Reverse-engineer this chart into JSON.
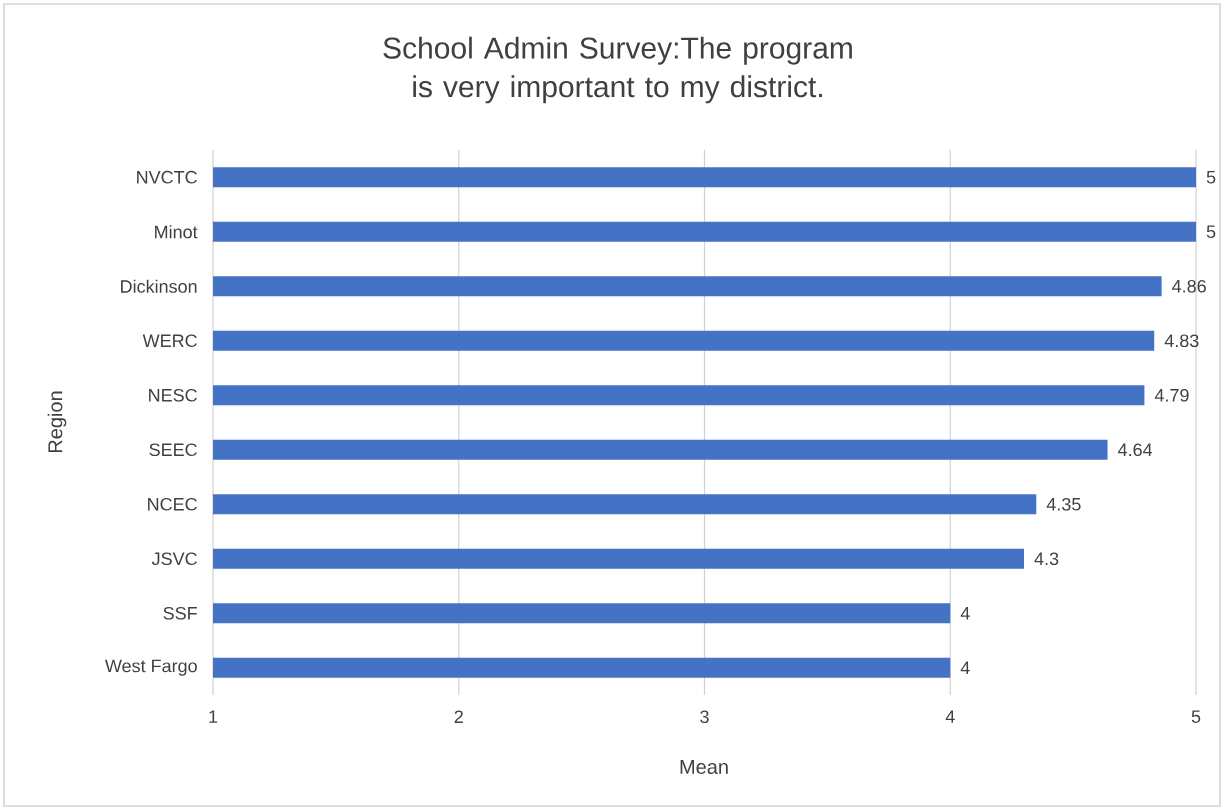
{
  "chart_data": {
    "type": "bar",
    "orientation": "horizontal",
    "title": "School Admin Survey:The program is very important to my district.",
    "xlabel": "Mean",
    "ylabel": "Region",
    "categories": [
      "NVCTC",
      "Minot",
      "Dickinson",
      "WERC",
      "NESC",
      "SEEC",
      "NCEC",
      "JSVC",
      "SSF",
      "West Fargo"
    ],
    "values": [
      5,
      5,
      4.86,
      4.83,
      4.79,
      4.64,
      4.35,
      4.3,
      4,
      4
    ],
    "color": "#4472c4",
    "xlim": [
      1,
      5
    ],
    "xticks": [
      1,
      2,
      3,
      4,
      5
    ],
    "grid": "x",
    "data_labels": true
  }
}
